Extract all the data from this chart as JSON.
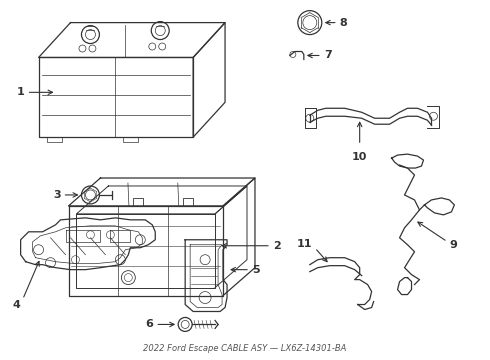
{
  "background_color": "#ffffff",
  "line_color": "#333333",
  "label_color": "#111111",
  "figsize": [
    4.9,
    3.6
  ],
  "dpi": 100,
  "lw": 0.9
}
